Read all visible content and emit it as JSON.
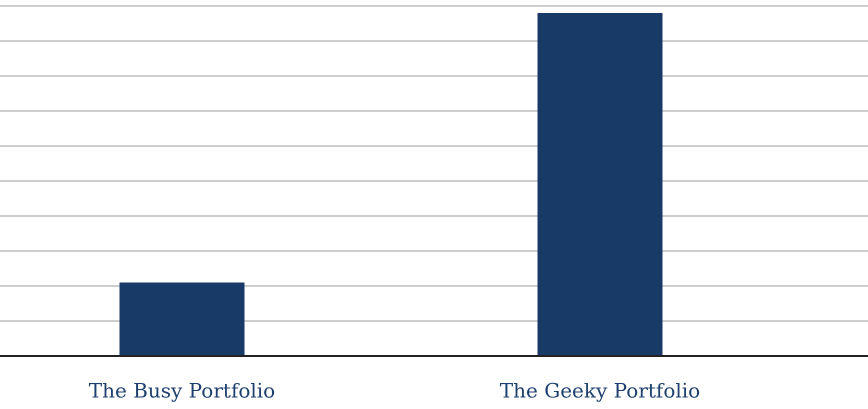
{
  "chart_data": {
    "type": "bar",
    "categories": [
      "The Busy Portfolio",
      "The Geeky Portfolio"
    ],
    "values": [
      2.1,
      9.8
    ],
    "color": "#173a66",
    "ylim": [
      0,
      10
    ],
    "yticks": [
      0,
      1,
      2,
      3,
      4,
      5,
      6,
      7,
      8,
      9,
      10
    ],
    "grid": true
  }
}
